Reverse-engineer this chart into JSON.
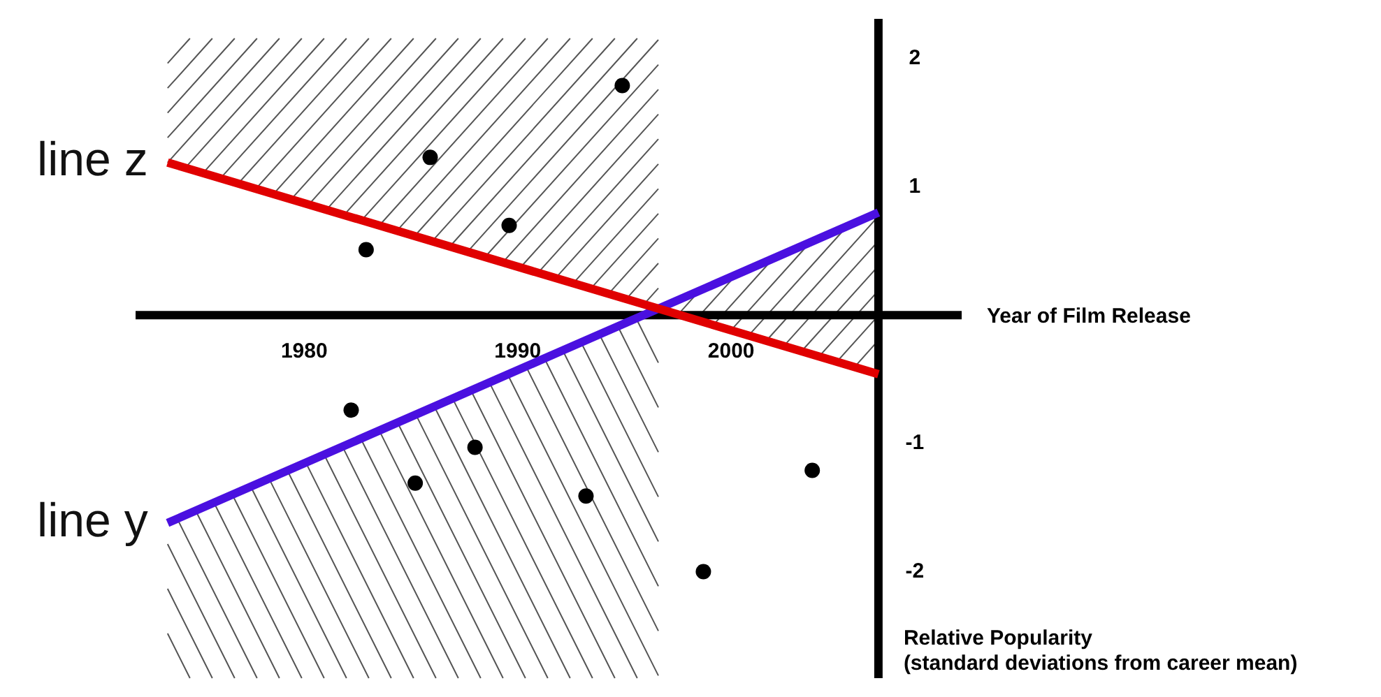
{
  "chart_data": {
    "type": "scatter",
    "xlabel": "Year of Film Release",
    "ylabel": "Relative Popularity\n(standard deviations from career mean)",
    "xlim": [
      1972.1,
      2010.8
    ],
    "ylim": [
      -2.83,
      2.31
    ],
    "xticks": [
      1980,
      1990,
      2000
    ],
    "yticks": [
      -2,
      -1,
      1,
      2
    ],
    "legend": false,
    "series": [
      {
        "color": "#000000",
        "marker": "circle",
        "x": [
          1982.9,
          1985.9,
          1989.6,
          1994.9,
          1982.2,
          1985.2,
          1988.0,
          1993.2,
          1998.7,
          2003.8
        ],
        "values": [
          0.51,
          1.23,
          0.7,
          1.79,
          -0.74,
          -1.31,
          -1.03,
          -1.41,
          -2.0,
          -1.21
        ]
      },
      {
        "type": "line",
        "name": "line z",
        "color": "#e00000",
        "x": [
          1973.6,
          2006.9
        ],
        "values": [
          1.19,
          -0.46
        ]
      },
      {
        "type": "line",
        "name": "line y",
        "color": "#4a10e0",
        "x": [
          1973.6,
          2006.9
        ],
        "values": [
          -1.62,
          0.8
        ]
      }
    ]
  }
}
